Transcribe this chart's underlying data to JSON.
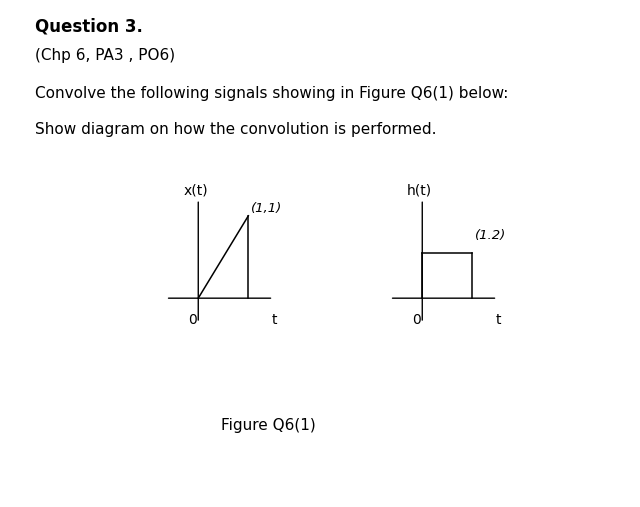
{
  "title_bold": "Question 3.",
  "subtitle1": "(Chp 6, PA3 , PO6)",
  "text1": "Convolve the following signals showing in Figure Q6(1) below:",
  "text2": "Show diagram on how the convolution is performed.",
  "figure_caption": "Figure Q6(1)",
  "plot1_title": "x(t)",
  "plot1_label": "(1,1)",
  "plot2_title": "h(t)",
  "plot2_label": "(1.2)",
  "axis_label_t": "t",
  "axis_label_0": "0",
  "background_color": "#ffffff",
  "line_color": "#000000",
  "font_size_title": 12,
  "font_size_text": 11,
  "font_size_axis": 10,
  "font_size_label": 9.5,
  "font_size_caption": 11
}
